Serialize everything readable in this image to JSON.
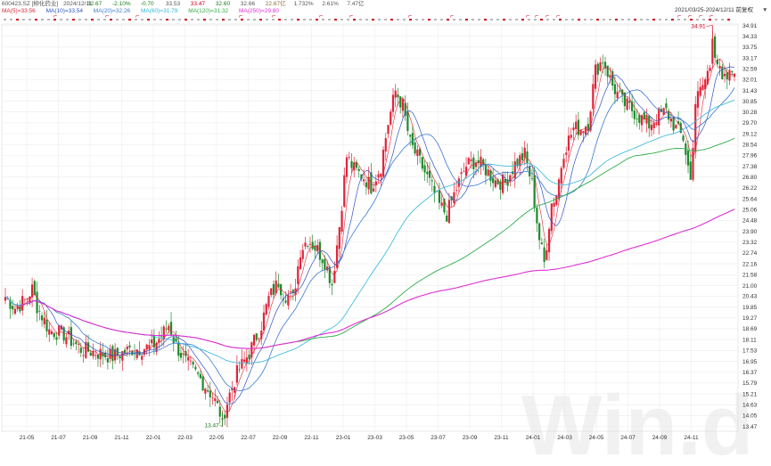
{
  "header": {
    "code": "600423.SZ",
    "name": "[柳化药业]",
    "date": "2024/12/11",
    "quote": [
      {
        "label": "32.67",
        "color": "#1a7f1a"
      },
      {
        "label": "-2.10%",
        "color": "#1a7f1a"
      },
      {
        "label": "-0.70",
        "color": "#1a7f1a"
      },
      {
        "label": "33.53",
        "color": "#555555"
      },
      {
        "label": "33.47",
        "color": "#d0021b"
      },
      {
        "label": "32.60",
        "color": "#1a7f1a"
      },
      {
        "label": "32.66",
        "color": "#555555"
      },
      {
        "label": "22.67亿",
        "color": "#8a6d3b"
      },
      {
        "label": "1.732%",
        "color": "#555555"
      },
      {
        "label": "2.61%",
        "color": "#555555"
      },
      {
        "label": "7.47亿",
        "color": "#555555"
      }
    ],
    "range_label": "2021/03/25-2024/12/11 前复权",
    "range_arrow": "▼"
  },
  "ma_legend": [
    {
      "label": "MA(5)=33.56",
      "color": "#e0243a"
    },
    {
      "label": "MA(10)=33.54",
      "color": "#2f53c9"
    },
    {
      "label": "MA(20)=32.26",
      "color": "#3a7ad1"
    },
    {
      "label": "MA(60)=31.79",
      "color": "#2fb7d9"
    },
    {
      "label": "MA(120)=31.32",
      "color": "#2fae49"
    },
    {
      "label": "MA(250)=29.80",
      "color": "#e02fd3"
    }
  ],
  "watermark": "Win.d",
  "colors": {
    "up": "#e0243a",
    "down": "#1f8a2b"
  },
  "chart_data": {
    "type": "candlestick",
    "x_ticks": [
      "21-05",
      "21-07",
      "21-09",
      "21-11",
      "22-01",
      "22-03",
      "22-05",
      "22-07",
      "22-09",
      "22-11",
      "23-01",
      "23-03",
      "23-05",
      "23-07",
      "23-09",
      "23-11",
      "24-01",
      "24-03",
      "24-05",
      "24-07",
      "24-09",
      "24-11"
    ],
    "y_ticks": [
      "34.91",
      "34.33",
      "33.75",
      "33.17",
      "32.59",
      "32.01",
      "31.43",
      "30.85",
      "30.28",
      "29.70",
      "29.12",
      "28.54",
      "27.96",
      "27.38",
      "26.80",
      "26.22",
      "25.64",
      "25.06",
      "24.48",
      "23.90",
      "23.32",
      "22.74",
      "22.16",
      "21.58",
      "21.00",
      "20.43",
      "19.85",
      "19.27",
      "18.69",
      "18.11",
      "17.53",
      "16.95",
      "16.37",
      "15.79",
      "15.21",
      "14.63",
      "14.05",
      "13.47"
    ],
    "ylim": [
      13.47,
      34.91
    ],
    "close_path": [
      [
        0,
        20.4
      ],
      [
        4,
        19.8
      ],
      [
        8,
        20.2
      ],
      [
        11,
        20.8
      ],
      [
        13,
        19.9
      ],
      [
        18,
        18.6
      ],
      [
        24,
        18.4
      ],
      [
        31,
        17.6
      ],
      [
        38,
        17.4
      ],
      [
        44,
        17.2
      ],
      [
        52,
        17.6
      ],
      [
        60,
        17.7
      ],
      [
        64,
        18.3
      ],
      [
        67,
        18.9
      ],
      [
        70,
        17.8
      ],
      [
        74,
        16.9
      ],
      [
        80,
        16.0
      ],
      [
        85,
        15.1
      ],
      [
        89,
        13.9
      ],
      [
        92,
        15.2
      ],
      [
        95,
        16.3
      ],
      [
        100,
        17.4
      ],
      [
        105,
        18.9
      ],
      [
        108,
        20.3
      ],
      [
        112,
        21.2
      ],
      [
        114,
        20.6
      ],
      [
        118,
        20.3
      ],
      [
        121,
        22.9
      ],
      [
        124,
        23.5
      ],
      [
        128,
        22.9
      ],
      [
        131,
        22.3
      ],
      [
        134,
        21.1
      ],
      [
        137,
        24.2
      ],
      [
        140,
        27.9
      ],
      [
        143,
        27.2
      ],
      [
        147,
        26.8
      ],
      [
        150,
        26.3
      ],
      [
        154,
        27.4
      ],
      [
        157,
        29.7
      ],
      [
        160,
        31.4
      ],
      [
        163,
        30.6
      ],
      [
        166,
        28.6
      ],
      [
        170,
        27.6
      ],
      [
        174,
        26.5
      ],
      [
        178,
        25.3
      ],
      [
        181,
        24.8
      ],
      [
        185,
        26.2
      ],
      [
        189,
        27.4
      ],
      [
        193,
        27.7
      ],
      [
        197,
        27.2
      ],
      [
        201,
        26.6
      ],
      [
        205,
        26.5
      ],
      [
        209,
        27.5
      ],
      [
        213,
        28.0
      ],
      [
        216,
        26.4
      ],
      [
        219,
        23.5
      ],
      [
        221,
        22.2
      ],
      [
        224,
        25.4
      ],
      [
        226,
        25.9
      ],
      [
        229,
        28.2
      ],
      [
        233,
        29.4
      ],
      [
        236,
        29.4
      ],
      [
        239,
        29.7
      ],
      [
        242,
        32.5
      ],
      [
        245,
        33.1
      ],
      [
        249,
        31.7
      ],
      [
        253,
        30.8
      ],
      [
        257,
        30.4
      ],
      [
        261,
        29.9
      ],
      [
        264,
        29.6
      ],
      [
        268,
        30.1
      ],
      [
        271,
        30.3
      ],
      [
        275,
        29.4
      ],
      [
        278,
        28.9
      ],
      [
        281,
        26.6
      ],
      [
        283,
        30.8
      ],
      [
        287,
        32.0
      ],
      [
        291,
        33.5
      ],
      [
        294,
        31.8
      ],
      [
        297,
        32.2
      ],
      [
        299,
        32.7
      ]
    ],
    "ma5_last": 33.56,
    "ma10_last": 33.54,
    "ma20_last": 32.26,
    "ma60_last": 31.79,
    "ma120_last": 31.32,
    "ma250_last": 29.8,
    "annotations": [
      {
        "label": "13.47",
        "index": 89,
        "value": 13.47,
        "color": "#1a7f1a"
      },
      {
        "label": "34.91",
        "index": 290,
        "value": 34.91,
        "color": "#d0021b"
      }
    ]
  }
}
